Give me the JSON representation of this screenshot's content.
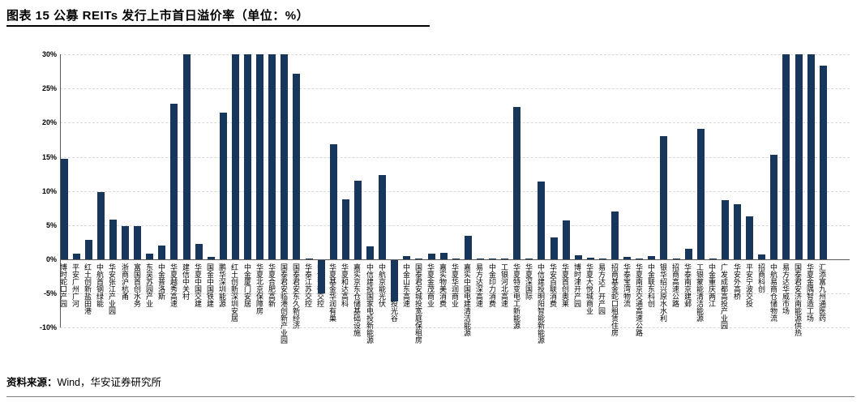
{
  "header": {
    "title": "图表 15 公募 REITs 发行上市首日溢价率（单位：%）"
  },
  "footer": {
    "source_label": "资料来源：",
    "source_text": "Wind，华安证券研究所"
  },
  "colors": {
    "bar": "#16365C",
    "gridline": "#d9d9d9",
    "axis": "#595959"
  },
  "chart_data": {
    "type": "bar",
    "title": "公募 REITs 发行上市首日溢价率",
    "unit": "%",
    "ylim": [
      -10,
      30
    ],
    "yticks": [
      30,
      25,
      20,
      15,
      10,
      5,
      0,
      -5,
      -10
    ],
    "ytick_labels": [
      "30%",
      "25%",
      "20%",
      "15%",
      "10%",
      "5%",
      "0%",
      "-5%",
      "-10%"
    ],
    "grid": "dashed-horizontal",
    "legend": "none",
    "categories": [
      "博时蛇口产园",
      "平安广州广河",
      "红土创新盐田港",
      "中航首钢绿能",
      "华安张江产业园",
      "浙商沪杭甬",
      "富国首创水务",
      "东吴苏园产业",
      "中金普洛斯",
      "华夏越秀高速",
      "建信中关村",
      "华夏中国交建",
      "国金中国铁建",
      "鹏华深圳能源",
      "红土创新深圳安居",
      "中金厦门安居",
      "华夏北京保障房",
      "华夏合肥高新",
      "国泰君安临港创新产业园",
      "国泰君安东久新经济",
      "华泰江苏交控",
      "中金安徽交控",
      "华夏基金华润有巢",
      "华夏和达高科",
      "嘉实京东仓储基础设施",
      "中信建投国家电投新能源",
      "中航京能光伏",
      "中金湖北科投光谷",
      "中金山东高速",
      "国泰君安城投宽庭保租房",
      "华夏金茂商业",
      "嘉实物美消费",
      "华夏华润商业",
      "嘉实中国电建清洁能源",
      "易方达深高速",
      "中金印力消费",
      "工银河北高速",
      "华夏特变电工新能源",
      "华夏深国际",
      "中信建投明阳智能新能源",
      "华安百联消费",
      "华夏首创奥莱",
      "博时津开产园",
      "华夏大悦城商业",
      "易方达广开产园",
      "招商基金蛇口租赁住房",
      "华泰宝湾物流",
      "华夏南京交通高速公路",
      "中金联东科创",
      "银华绍兴原水水利",
      "招商高速公路",
      "华泰南京建邺",
      "工银蒙能清洁能源",
      "中金重庆两江",
      "广发成都高投产业园",
      "华安外高桥",
      "平安宁波交投",
      "招商科创",
      "中航易商仓储物流",
      "易方达华威市场",
      "国泰君安济南能源供热",
      "华夏金隅智造工场",
      "汇添富九州通医药"
    ],
    "values": [
      14.7,
      0.8,
      2.9,
      9.9,
      5.8,
      4.9,
      4.9,
      0.8,
      2.0,
      22.8,
      30.0,
      2.2,
      0.3,
      21.5,
      30.0,
      30.0,
      30.0,
      30.0,
      30.0,
      27.1,
      0.1,
      -4.9,
      16.8,
      8.8,
      11.5,
      1.9,
      12.3,
      -6.1,
      0.5,
      0.1,
      0.8,
      0.9,
      0.1,
      3.4,
      0.1,
      0.1,
      0.1,
      22.3,
      0.1,
      11.4,
      3.2,
      5.7,
      0.6,
      0.2,
      0.1,
      7.0,
      0.3,
      0.1,
      0.5,
      18.0,
      0.1,
      1.5,
      19.1,
      0.1,
      8.7,
      8.1,
      6.3,
      0.7,
      15.3,
      30.0,
      30.0,
      30.0,
      28.3
    ]
  }
}
